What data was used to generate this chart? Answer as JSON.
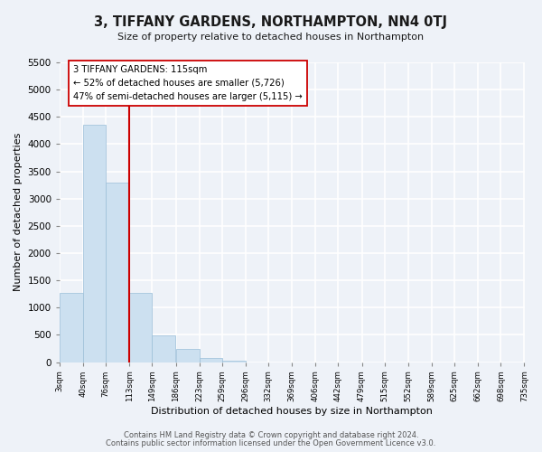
{
  "title": "3, TIFFANY GARDENS, NORTHAMPTON, NN4 0TJ",
  "subtitle": "Size of property relative to detached houses in Northampton",
  "xlabel": "Distribution of detached houses by size in Northampton",
  "ylabel": "Number of detached properties",
  "bar_color": "#cce0f0",
  "bar_edge_color": "#9bbfd8",
  "vline_color": "#cc0000",
  "vline_x_index": 3,
  "annotation_title": "3 TIFFANY GARDENS: 115sqm",
  "annotation_line1": "← 52% of detached houses are smaller (5,726)",
  "annotation_line2": "47% of semi-detached houses are larger (5,115) →",
  "annotation_box_color": "#ffffff",
  "annotation_box_edge": "#cc0000",
  "bin_edges": [
    3,
    40,
    76,
    113,
    149,
    186,
    223,
    259,
    296,
    332,
    369,
    406,
    442,
    479,
    515,
    552,
    589,
    625,
    662,
    698,
    735
  ],
  "bar_heights": [
    1270,
    4350,
    3300,
    1270,
    490,
    240,
    80,
    30,
    0,
    0,
    0,
    0,
    0,
    0,
    0,
    0,
    0,
    0,
    0,
    0
  ],
  "ylim": [
    0,
    5500
  ],
  "yticks": [
    0,
    500,
    1000,
    1500,
    2000,
    2500,
    3000,
    3500,
    4000,
    4500,
    5000,
    5500
  ],
  "footer1": "Contains HM Land Registry data © Crown copyright and database right 2024.",
  "footer2": "Contains public sector information licensed under the Open Government Licence v3.0.",
  "bg_color": "#eef2f8",
  "plot_bg_color": "#eef2f8",
  "grid_color": "#ffffff",
  "tick_labels": [
    "3sqm",
    "40sqm",
    "76sqm",
    "113sqm",
    "149sqm",
    "186sqm",
    "223sqm",
    "259sqm",
    "296sqm",
    "332sqm",
    "369sqm",
    "406sqm",
    "442sqm",
    "479sqm",
    "515sqm",
    "552sqm",
    "589sqm",
    "625sqm",
    "662sqm",
    "698sqm",
    "735sqm"
  ]
}
